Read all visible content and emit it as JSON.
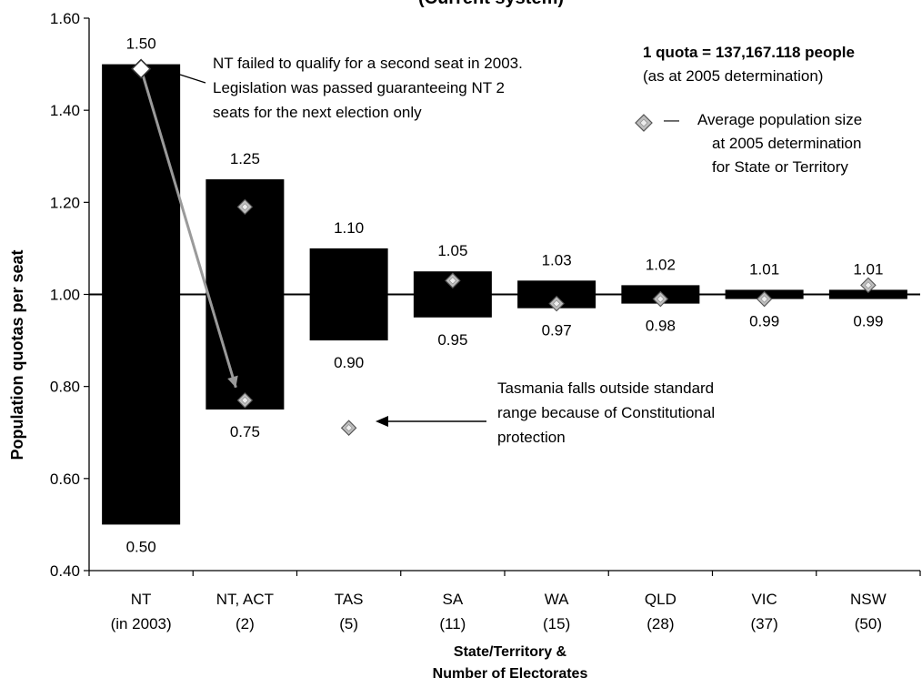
{
  "chart_data": {
    "type": "bar",
    "title": "(Current system)",
    "ylabel": "Population quotas per seat",
    "xlabel_lines": [
      "State/Territory &",
      "Number of Electorates"
    ],
    "ylim": [
      0.4,
      1.6
    ],
    "yticks": [
      "0.40",
      "0.60",
      "0.80",
      "1.00",
      "1.20",
      "1.40",
      "1.60"
    ],
    "baseline": 1.0,
    "categories": [
      {
        "name": "NT",
        "sub": "(in 2003)",
        "low": 0.5,
        "high": 1.5,
        "low_label": "0.50",
        "high_label": "1.50",
        "average": 1.49
      },
      {
        "name": "NT, ACT",
        "sub": "(2)",
        "low": 0.75,
        "high": 1.25,
        "low_label": "0.75",
        "high_label": "1.25",
        "average": 1.19
      },
      {
        "name": "TAS",
        "sub": "(5)",
        "low": 0.9,
        "high": 1.1,
        "low_label": "0.90",
        "high_label": "1.10",
        "average": 0.71
      },
      {
        "name": "SA",
        "sub": "(11)",
        "low": 0.95,
        "high": 1.05,
        "low_label": "0.95",
        "high_label": "1.05",
        "average": 1.03
      },
      {
        "name": "WA",
        "sub": "(15)",
        "low": 0.97,
        "high": 1.03,
        "low_label": "0.97",
        "high_label": "1.03",
        "average": 0.98
      },
      {
        "name": "QLD",
        "sub": "(28)",
        "low": 0.98,
        "high": 1.02,
        "low_label": "0.98",
        "high_label": "1.02",
        "average": 0.99
      },
      {
        "name": "VIC",
        "sub": "(37)",
        "low": 0.99,
        "high": 1.01,
        "low_label": "0.99",
        "high_label": "1.01",
        "average": 0.99
      },
      {
        "name": "NSW",
        "sub": "(50)",
        "low": 0.99,
        "high": 1.01,
        "low_label": "0.99",
        "high_label": "1.01",
        "average": 1.02
      }
    ],
    "extra_point": {
      "label": "NT, ACT (2) second average",
      "value": 0.77
    },
    "colors": {
      "bar": "#000000",
      "marker_fill": "#bdbdbd",
      "marker_stroke": "#555555",
      "arrow": "#9a9a9a"
    }
  },
  "annotations": {
    "nt_note": [
      "NT failed to qualify for a second seat in 2003.",
      "Legislation was passed guaranteeing NT 2",
      "seats for the next election only"
    ],
    "quota_bold": "1 quota = 137,167.118 people",
    "quota_sub": "(as at 2005 determination)",
    "legend_dash": "—",
    "legend_lines": [
      "Average population size",
      "at 2005 determination",
      "for State or Territory"
    ],
    "tas_note": [
      "Tasmania falls outside standard",
      "range because of Constitutional",
      "protection"
    ]
  }
}
